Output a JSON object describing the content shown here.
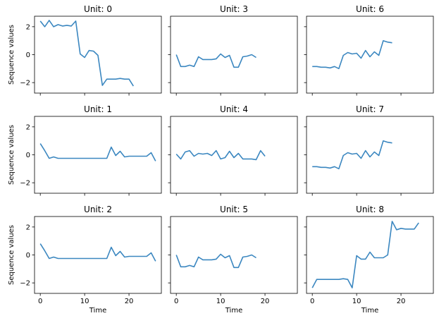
{
  "chart_data": {
    "type": "line",
    "line_color": "#3b87c0",
    "ylabel": "Sequence values",
    "xlabel": "Time",
    "xlim": [
      -1.3,
      27.3
    ],
    "ylim": [
      -2.75,
      2.75
    ],
    "x_ticks": [
      0,
      10,
      20
    ],
    "y_ticks": [
      -2,
      0,
      2
    ],
    "shared_axes": true,
    "grid": false,
    "layout": "3x3",
    "panel_order": [
      0,
      3,
      6,
      1,
      4,
      7,
      2,
      5,
      8
    ],
    "panels": [
      {
        "title": "Unit: 0",
        "x": [
          0,
          1,
          2,
          3,
          4,
          5,
          6,
          7,
          8,
          9,
          10,
          11,
          12,
          13,
          14,
          15,
          16,
          17,
          18,
          19,
          20,
          21
        ],
        "y": [
          2.4,
          2.0,
          2.45,
          2.0,
          2.15,
          2.05,
          2.1,
          2.05,
          2.4,
          0.05,
          -0.2,
          0.3,
          0.25,
          -0.05,
          -2.2,
          -1.75,
          -1.75,
          -1.75,
          -1.7,
          -1.75,
          -1.75,
          -2.25
        ]
      },
      {
        "title": "Unit: 1",
        "x": [
          0,
          1,
          2,
          3,
          4,
          5,
          6,
          7,
          8,
          9,
          10,
          11,
          12,
          13,
          14,
          15,
          16,
          17,
          18,
          19,
          20,
          21,
          22,
          23,
          24,
          25,
          26
        ],
        "y": [
          0.8,
          0.3,
          -0.25,
          -0.15,
          -0.25,
          -0.25,
          -0.25,
          -0.25,
          -0.25,
          -0.25,
          -0.25,
          -0.25,
          -0.25,
          -0.25,
          -0.25,
          -0.25,
          0.55,
          -0.05,
          0.25,
          -0.15,
          -0.1,
          -0.1,
          -0.1,
          -0.1,
          -0.1,
          0.15,
          -0.45
        ]
      },
      {
        "title": "Unit: 2",
        "x": [
          0,
          1,
          2,
          3,
          4,
          5,
          6,
          7,
          8,
          9,
          10,
          11,
          12,
          13,
          14,
          15,
          16,
          17,
          18,
          19,
          20,
          21,
          22,
          23,
          24,
          25,
          26
        ],
        "y": [
          0.8,
          0.3,
          -0.25,
          -0.15,
          -0.25,
          -0.25,
          -0.25,
          -0.25,
          -0.25,
          -0.25,
          -0.25,
          -0.25,
          -0.25,
          -0.25,
          -0.25,
          -0.25,
          0.55,
          -0.05,
          0.25,
          -0.15,
          -0.1,
          -0.1,
          -0.1,
          -0.1,
          -0.1,
          0.15,
          -0.45
        ]
      },
      {
        "title": "Unit: 3",
        "x": [
          0,
          1,
          2,
          3,
          4,
          5,
          6,
          7,
          8,
          9,
          10,
          11,
          12,
          13,
          14,
          15,
          16,
          17,
          18
        ],
        "y": [
          0.0,
          -0.85,
          -0.85,
          -0.75,
          -0.85,
          -0.15,
          -0.35,
          -0.35,
          -0.35,
          -0.3,
          0.05,
          -0.2,
          -0.05,
          -0.9,
          -0.9,
          -0.15,
          -0.1,
          0.0,
          -0.2
        ]
      },
      {
        "title": "Unit: 4",
        "x": [
          0,
          1,
          2,
          3,
          4,
          5,
          6,
          7,
          8,
          9,
          10,
          11,
          12,
          13,
          14,
          15,
          16,
          17,
          18,
          19,
          20
        ],
        "y": [
          0.05,
          -0.3,
          0.2,
          0.3,
          -0.1,
          0.1,
          0.05,
          0.1,
          -0.05,
          0.3,
          -0.3,
          -0.2,
          0.25,
          -0.2,
          0.1,
          -0.3,
          -0.3,
          -0.3,
          -0.35,
          0.3,
          -0.1
        ]
      },
      {
        "title": "Unit: 5",
        "x": [
          0,
          1,
          2,
          3,
          4,
          5,
          6,
          7,
          8,
          9,
          10,
          11,
          12,
          13,
          14,
          15,
          16,
          17,
          18
        ],
        "y": [
          0.0,
          -0.85,
          -0.85,
          -0.75,
          -0.85,
          -0.15,
          -0.35,
          -0.35,
          -0.35,
          -0.3,
          0.05,
          -0.2,
          -0.05,
          -0.9,
          -0.9,
          -0.15,
          -0.1,
          0.0,
          -0.2
        ]
      },
      {
        "title": "Unit: 6",
        "x": [
          0,
          1,
          2,
          3,
          4,
          5,
          6,
          7,
          8,
          9,
          10,
          11,
          12,
          13,
          14,
          15,
          16,
          17,
          18
        ],
        "y": [
          -0.85,
          -0.85,
          -0.9,
          -0.9,
          -0.95,
          -0.85,
          -1.0,
          -0.05,
          0.15,
          0.05,
          0.1,
          -0.25,
          0.3,
          -0.15,
          0.2,
          -0.05,
          1.0,
          0.9,
          0.85
        ]
      },
      {
        "title": "Unit: 7",
        "x": [
          0,
          1,
          2,
          3,
          4,
          5,
          6,
          7,
          8,
          9,
          10,
          11,
          12,
          13,
          14,
          15,
          16,
          17,
          18
        ],
        "y": [
          -0.85,
          -0.85,
          -0.9,
          -0.9,
          -0.95,
          -0.85,
          -1.0,
          -0.05,
          0.15,
          0.05,
          0.1,
          -0.25,
          0.3,
          -0.15,
          0.2,
          -0.05,
          1.0,
          0.9,
          0.85
        ]
      },
      {
        "title": "Unit: 8",
        "x": [
          0,
          1,
          2,
          3,
          4,
          5,
          6,
          7,
          8,
          9,
          10,
          11,
          12,
          13,
          14,
          15,
          16,
          17,
          18,
          19,
          20,
          21,
          22,
          23,
          24
        ],
        "y": [
          -2.35,
          -1.75,
          -1.75,
          -1.75,
          -1.75,
          -1.75,
          -1.75,
          -1.7,
          -1.75,
          -2.35,
          -0.05,
          -0.3,
          -0.3,
          0.2,
          -0.2,
          -0.2,
          -0.2,
          0.0,
          2.4,
          1.8,
          1.9,
          1.85,
          1.85,
          1.85,
          2.3
        ]
      }
    ]
  }
}
